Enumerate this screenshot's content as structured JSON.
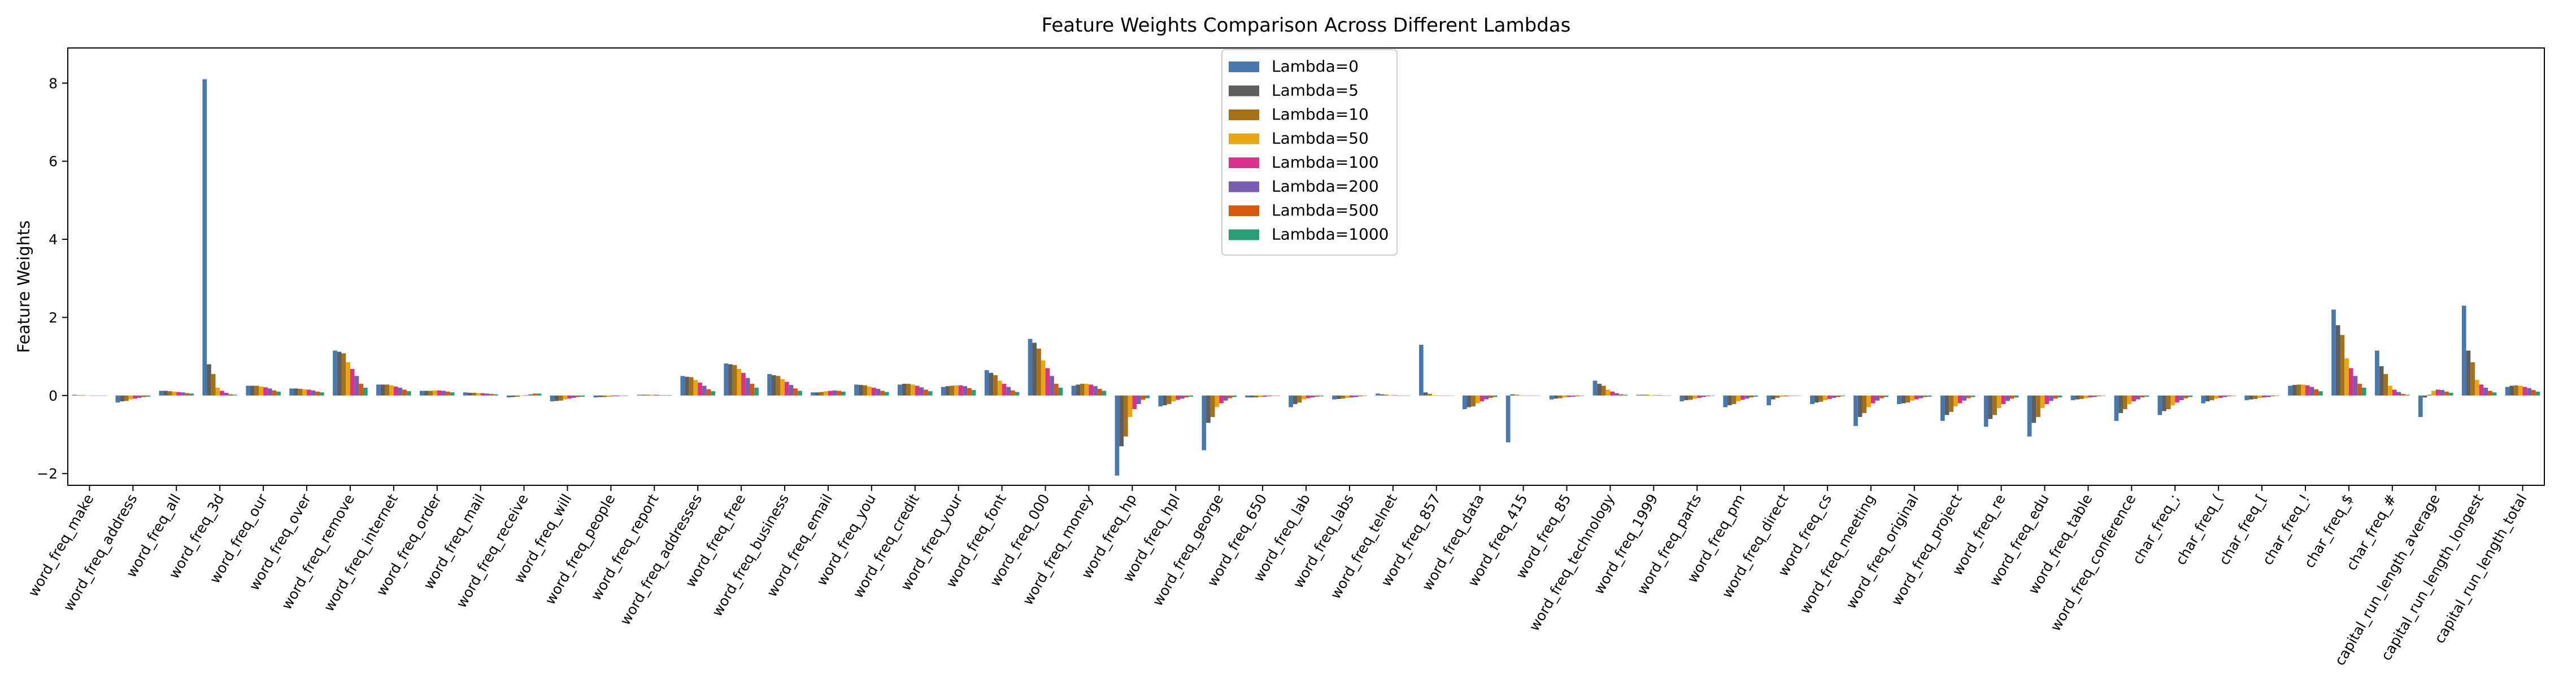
{
  "chart_data": {
    "type": "bar",
    "title": "Feature Weights Comparison Across Different Lambdas",
    "xlabel": "",
    "ylabel": "Feature Weights",
    "ylim": [
      -2.3,
      8.9
    ],
    "yticks": [
      -2,
      0,
      2,
      4,
      6,
      8
    ],
    "grid": false,
    "legend_position": "top-center",
    "categories": [
      "word_freq_make",
      "word_freq_address",
      "word_freq_all",
      "word_freq_3d",
      "word_freq_our",
      "word_freq_over",
      "word_freq_remove",
      "word_freq_internet",
      "word_freq_order",
      "word_freq_mail",
      "word_freq_receive",
      "word_freq_will",
      "word_freq_people",
      "word_freq_report",
      "word_freq_addresses",
      "word_freq_free",
      "word_freq_business",
      "word_freq_email",
      "word_freq_you",
      "word_freq_credit",
      "word_freq_your",
      "word_freq_font",
      "word_freq_000",
      "word_freq_money",
      "word_freq_hp",
      "word_freq_hpl",
      "word_freq_george",
      "word_freq_650",
      "word_freq_lab",
      "word_freq_labs",
      "word_freq_telnet",
      "word_freq_857",
      "word_freq_data",
      "word_freq_415",
      "word_freq_85",
      "word_freq_technology",
      "word_freq_1999",
      "word_freq_parts",
      "word_freq_pm",
      "word_freq_direct",
      "word_freq_cs",
      "word_freq_meeting",
      "word_freq_original",
      "word_freq_project",
      "word_freq_re",
      "word_freq_edu",
      "word_freq_table",
      "word_freq_conference",
      "char_freq_;",
      "char_freq_(",
      "char_freq_[",
      "char_freq_!",
      "char_freq_$",
      "char_freq_#",
      "capital_run_length_average",
      "capital_run_length_longest",
      "capital_run_length_total"
    ],
    "series": [
      {
        "name": "Lambda=0",
        "color": "#4878b0",
        "values": [
          0.02,
          -0.18,
          0.12,
          8.1,
          0.25,
          0.18,
          1.15,
          0.28,
          0.12,
          0.08,
          -0.05,
          -0.15,
          -0.05,
          0.02,
          0.5,
          0.82,
          0.55,
          0.08,
          0.28,
          0.28,
          0.22,
          0.65,
          1.45,
          0.25,
          -2.05,
          -0.28,
          -1.4,
          -0.05,
          -0.3,
          -0.1,
          0.05,
          1.3,
          -0.35,
          -1.2,
          -0.1,
          0.38,
          0.02,
          -0.15,
          -0.3,
          -0.25,
          -0.22,
          -0.78,
          -0.22,
          -0.65,
          -0.8,
          -1.05,
          -0.12,
          -0.65,
          -0.5,
          -0.2,
          -0.12,
          0.25,
          2.2,
          1.15,
          -0.55,
          2.3,
          0.22
        ]
      },
      {
        "name": "Lambda=5",
        "color": "#5e5e5e",
        "values": [
          0.01,
          -0.15,
          0.12,
          0.8,
          0.25,
          0.18,
          1.12,
          0.28,
          0.12,
          0.07,
          -0.04,
          -0.14,
          -0.04,
          0.02,
          0.48,
          0.8,
          0.52,
          0.08,
          0.27,
          0.3,
          0.24,
          0.58,
          1.35,
          0.28,
          -1.3,
          -0.25,
          -0.7,
          -0.05,
          -0.22,
          -0.09,
          0.03,
          0.08,
          -0.3,
          0.03,
          -0.08,
          0.3,
          0.02,
          -0.12,
          -0.25,
          -0.1,
          -0.18,
          -0.55,
          -0.2,
          -0.5,
          -0.6,
          -0.7,
          -0.1,
          -0.45,
          -0.4,
          -0.15,
          -0.1,
          0.27,
          1.8,
          0.75,
          -0.05,
          1.15,
          0.25
        ]
      },
      {
        "name": "Lambda=10",
        "color": "#a67016",
        "values": [
          0.01,
          -0.14,
          0.11,
          0.55,
          0.25,
          0.17,
          1.08,
          0.28,
          0.12,
          0.07,
          -0.03,
          -0.13,
          -0.04,
          0.02,
          0.47,
          0.78,
          0.5,
          0.09,
          0.26,
          0.3,
          0.25,
          0.52,
          1.2,
          0.3,
          -1.05,
          -0.22,
          -0.55,
          -0.05,
          -0.18,
          -0.08,
          0.02,
          0.04,
          -0.28,
          0.02,
          -0.07,
          0.25,
          0.02,
          -0.11,
          -0.22,
          -0.06,
          -0.16,
          -0.45,
          -0.18,
          -0.42,
          -0.5,
          -0.55,
          -0.09,
          -0.35,
          -0.35,
          -0.12,
          -0.09,
          0.28,
          1.55,
          0.55,
          0.02,
          0.85,
          0.26
        ]
      },
      {
        "name": "Lambda=50",
        "color": "#e8a614",
        "values": [
          0.0,
          -0.1,
          0.1,
          0.2,
          0.23,
          0.16,
          0.85,
          0.26,
          0.13,
          0.06,
          -0.01,
          -0.1,
          -0.03,
          0.02,
          0.4,
          0.68,
          0.42,
          0.11,
          0.23,
          0.28,
          0.26,
          0.38,
          0.9,
          0.3,
          -0.55,
          -0.15,
          -0.3,
          -0.04,
          -0.1,
          -0.06,
          0.01,
          0.01,
          -0.2,
          0.01,
          -0.05,
          0.15,
          0.01,
          -0.08,
          -0.15,
          -0.03,
          -0.12,
          -0.3,
          -0.13,
          -0.28,
          -0.32,
          -0.32,
          -0.07,
          -0.22,
          -0.25,
          -0.08,
          -0.06,
          0.28,
          0.95,
          0.25,
          0.12,
          0.4,
          0.25
        ]
      },
      {
        "name": "Lambda=100",
        "color": "#d8338a",
        "values": [
          0.0,
          -0.08,
          0.09,
          0.12,
          0.21,
          0.15,
          0.68,
          0.23,
          0.13,
          0.06,
          0.01,
          -0.08,
          -0.02,
          0.02,
          0.33,
          0.58,
          0.35,
          0.12,
          0.2,
          0.25,
          0.26,
          0.3,
          0.7,
          0.28,
          -0.35,
          -0.11,
          -0.2,
          -0.03,
          -0.07,
          -0.05,
          0.01,
          0.0,
          -0.15,
          0.0,
          -0.04,
          0.1,
          0.01,
          -0.06,
          -0.11,
          -0.02,
          -0.09,
          -0.2,
          -0.1,
          -0.2,
          -0.22,
          -0.22,
          -0.05,
          -0.15,
          -0.18,
          -0.06,
          -0.05,
          0.26,
          0.7,
          0.15,
          0.15,
          0.28,
          0.22
        ]
      },
      {
        "name": "Lambda=200",
        "color": "#7a5cb0",
        "values": [
          0.0,
          -0.06,
          0.08,
          0.07,
          0.18,
          0.13,
          0.5,
          0.2,
          0.12,
          0.05,
          0.03,
          -0.06,
          -0.02,
          0.01,
          0.25,
          0.45,
          0.27,
          0.13,
          0.17,
          0.21,
          0.24,
          0.22,
          0.5,
          0.24,
          -0.22,
          -0.08,
          -0.13,
          -0.02,
          -0.05,
          -0.04,
          0.0,
          0.0,
          -0.1,
          0.0,
          -0.03,
          0.06,
          0.01,
          -0.04,
          -0.08,
          -0.01,
          -0.06,
          -0.13,
          -0.07,
          -0.13,
          -0.14,
          -0.14,
          -0.04,
          -0.1,
          -0.12,
          -0.04,
          -0.04,
          0.22,
          0.5,
          0.09,
          0.14,
          0.2,
          0.19
        ]
      },
      {
        "name": "Lambda=500",
        "color": "#d6580d",
        "values": [
          0.0,
          -0.04,
          0.06,
          0.03,
          0.13,
          0.1,
          0.3,
          0.15,
          0.1,
          0.04,
          0.05,
          -0.04,
          -0.01,
          0.01,
          0.16,
          0.3,
          0.18,
          0.12,
          0.12,
          0.15,
          0.19,
          0.13,
          0.3,
          0.17,
          -0.11,
          -0.05,
          -0.07,
          -0.01,
          -0.03,
          -0.02,
          0.0,
          0.0,
          -0.06,
          0.0,
          -0.02,
          0.03,
          0.0,
          -0.02,
          -0.05,
          -0.01,
          -0.04,
          -0.07,
          -0.04,
          -0.07,
          -0.08,
          -0.08,
          -0.02,
          -0.05,
          -0.07,
          -0.02,
          -0.02,
          0.16,
          0.3,
          0.04,
          0.1,
          0.12,
          0.14
        ]
      },
      {
        "name": "Lambda=1000",
        "color": "#2a9c7a",
        "values": [
          0.0,
          -0.03,
          0.05,
          0.02,
          0.1,
          0.08,
          0.2,
          0.11,
          0.08,
          0.03,
          0.05,
          -0.03,
          -0.01,
          0.01,
          0.11,
          0.2,
          0.12,
          0.1,
          0.09,
          0.11,
          0.14,
          0.09,
          0.2,
          0.12,
          -0.07,
          -0.03,
          -0.04,
          -0.01,
          -0.02,
          -0.01,
          0.0,
          0.0,
          -0.04,
          0.0,
          -0.01,
          0.02,
          0.0,
          -0.01,
          -0.03,
          0.0,
          -0.02,
          -0.04,
          -0.03,
          -0.04,
          -0.05,
          -0.05,
          -0.01,
          -0.03,
          -0.04,
          -0.01,
          -0.01,
          0.11,
          0.2,
          0.02,
          0.07,
          0.08,
          0.1
        ]
      }
    ]
  }
}
